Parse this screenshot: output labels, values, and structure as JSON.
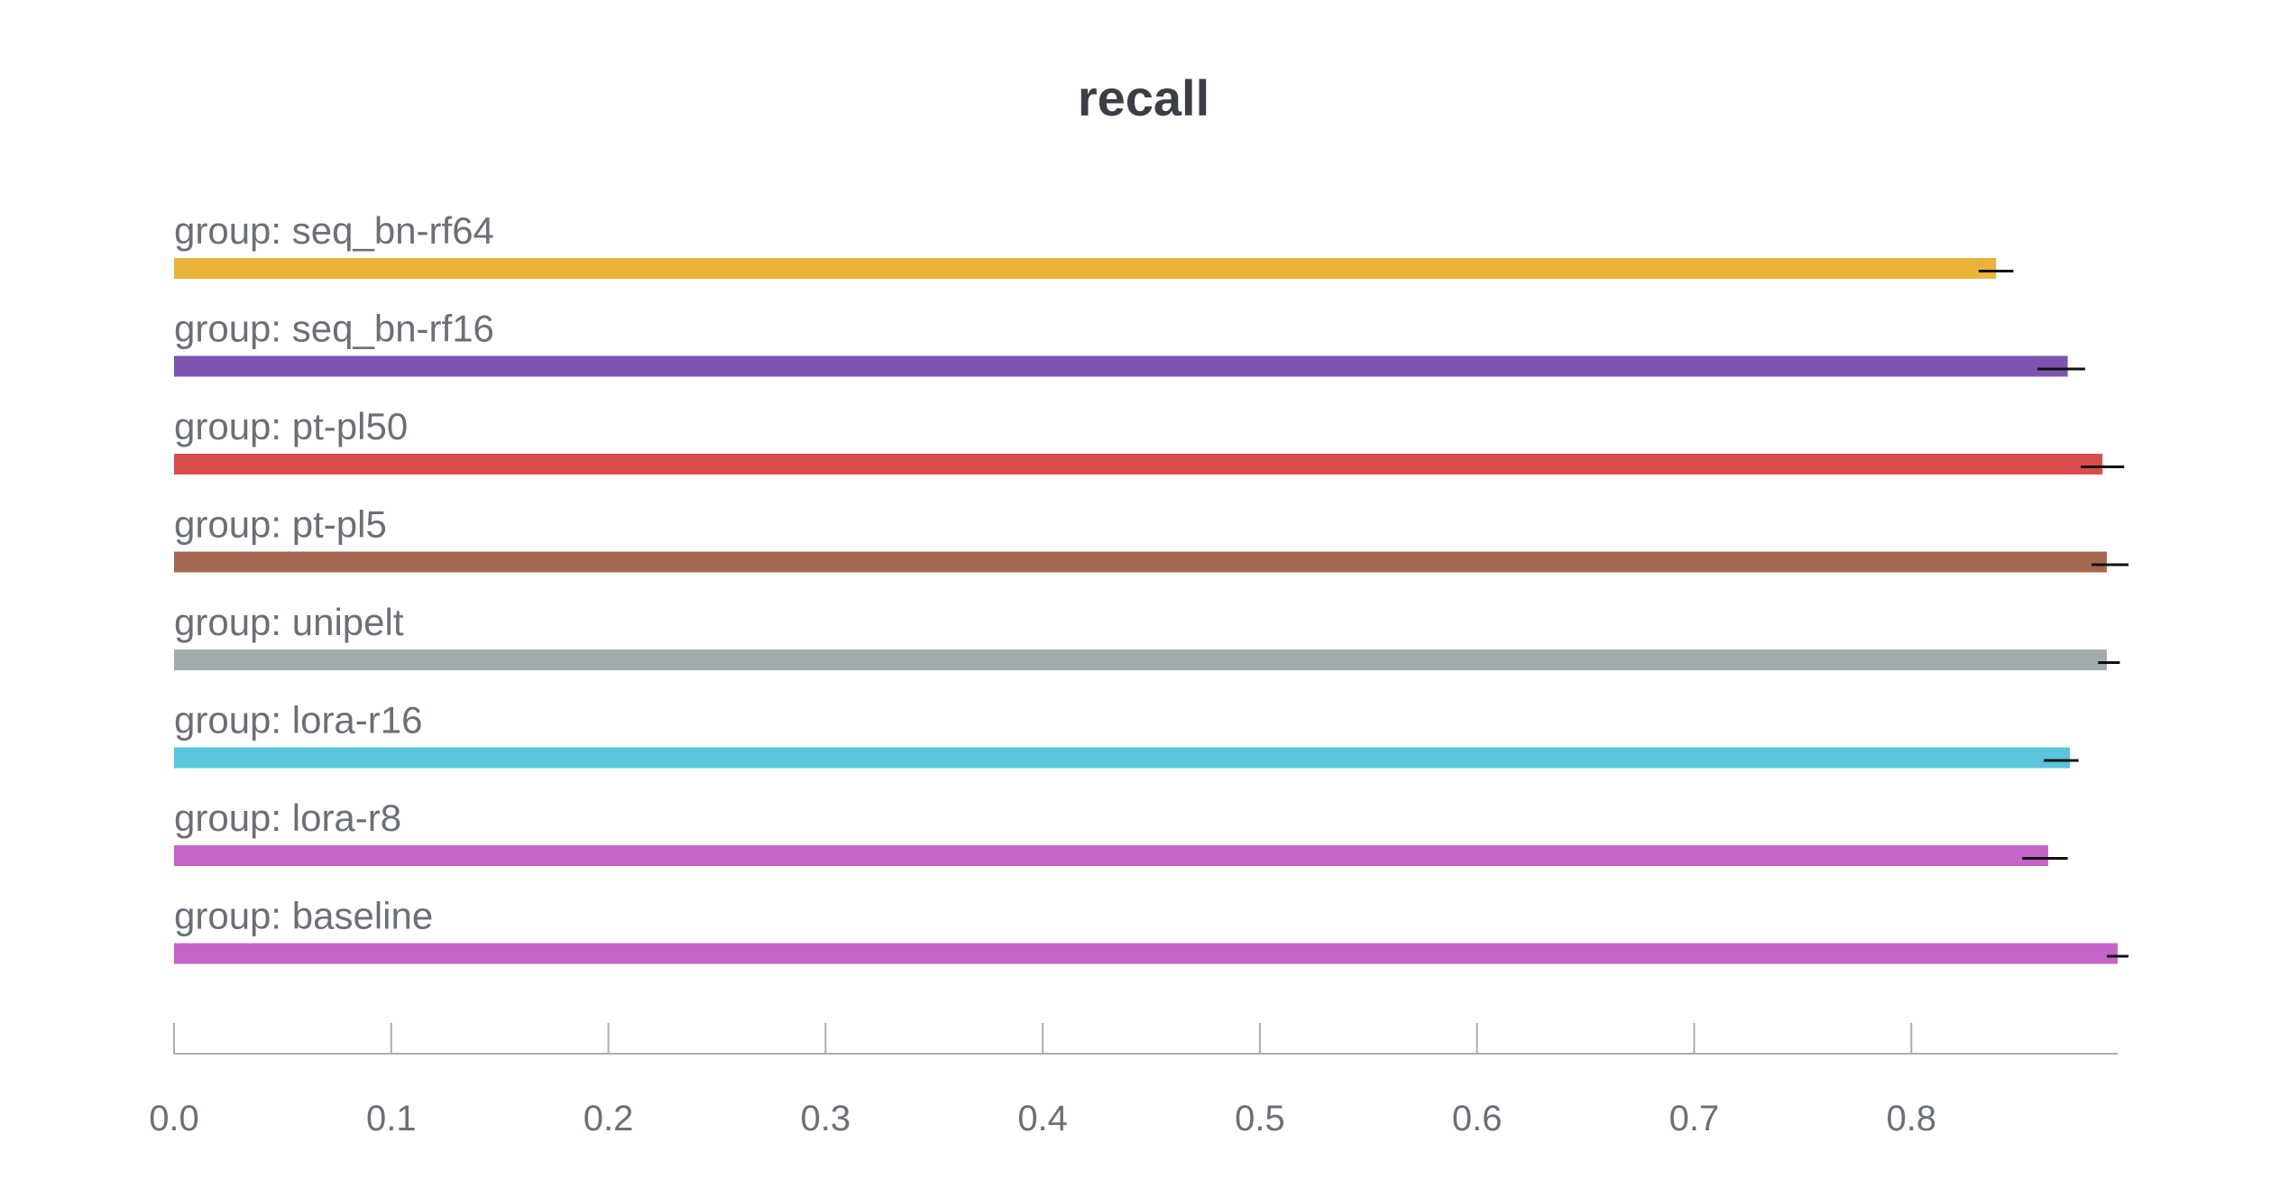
{
  "chart_data": {
    "type": "bar",
    "orientation": "horizontal",
    "title": "recall",
    "xlabel": "",
    "ylabel": "",
    "xlim": [
      0,
      0.895
    ],
    "ticks": [
      "0.0",
      "0.1",
      "0.2",
      "0.3",
      "0.4",
      "0.5",
      "0.6",
      "0.7",
      "0.8"
    ],
    "tick_values": [
      0.0,
      0.1,
      0.2,
      0.3,
      0.4,
      0.5,
      0.6,
      0.7,
      0.8
    ],
    "grid": false,
    "bars": [
      {
        "label": "group: seq_bn-rf64",
        "value": 0.839,
        "err_low": 0.831,
        "err_high": 0.847,
        "color": "#EBB339"
      },
      {
        "label": "group: seq_bn-rf16",
        "value": 0.872,
        "err_low": 0.858,
        "err_high": 0.88,
        "color": "#7D54B2"
      },
      {
        "label": "group: pt-pl50",
        "value": 0.888,
        "err_low": 0.878,
        "err_high": 0.898,
        "color": "#DA4C4C"
      },
      {
        "label": "group: pt-pl5",
        "value": 0.89,
        "err_low": 0.883,
        "err_high": 0.9,
        "color": "#A46750"
      },
      {
        "label": "group: unipelt",
        "value": 0.89,
        "err_low": 0.886,
        "err_high": 0.896,
        "color": "#A1A9AD"
      },
      {
        "label": "group: lora-r16",
        "value": 0.873,
        "err_low": 0.861,
        "err_high": 0.877,
        "color": "#5BC5DB"
      },
      {
        "label": "group: lora-r8",
        "value": 0.863,
        "err_low": 0.851,
        "err_high": 0.872,
        "color": "#C565C7"
      },
      {
        "label": "group: baseline",
        "value": 0.895,
        "err_low": 0.89,
        "err_high": 0.9,
        "color": "#C565C7"
      }
    ]
  }
}
